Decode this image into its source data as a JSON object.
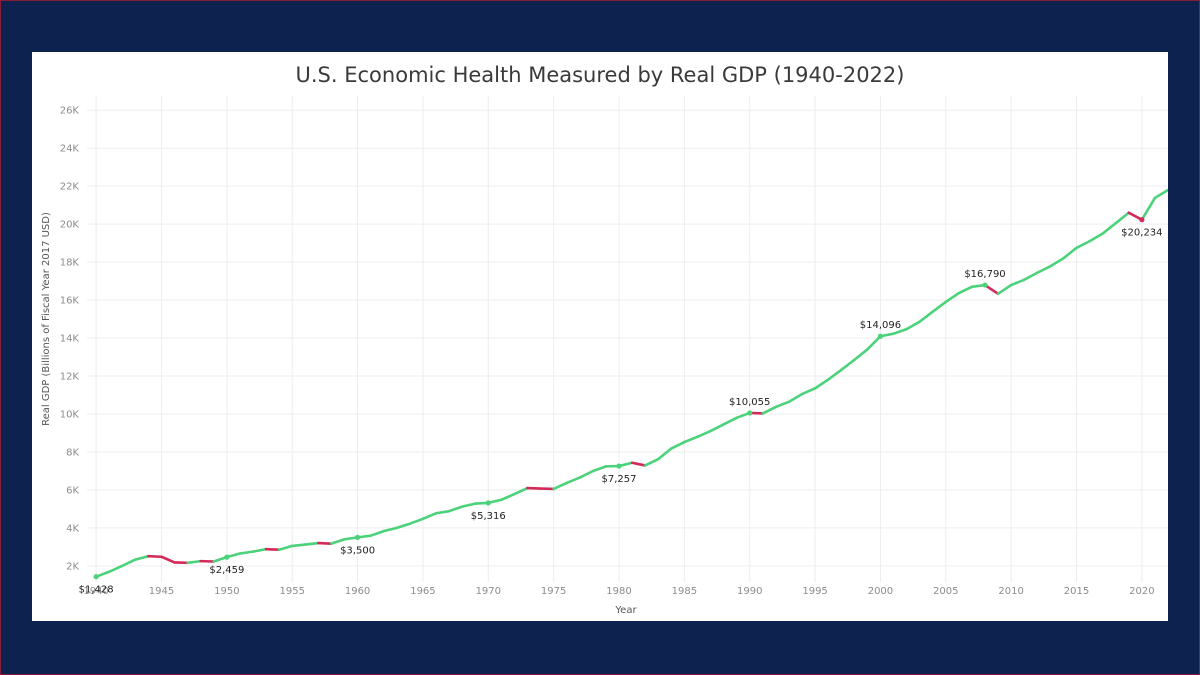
{
  "colors": {
    "background": "#0e2250",
    "growth": "#4cd27a",
    "decline": "#d42a5b",
    "grid": "#ededed"
  },
  "chart_data": {
    "type": "line",
    "title": "U.S. Economic Health Measured by Real GDP (1940-2022)",
    "xlabel": "Year",
    "ylabel": "Real GDP (Billions of Fiscal Year 2017 USD)",
    "xlim": [
      1939.3,
      2022
    ],
    "ylim": [
      1150,
      26750
    ],
    "grid": true,
    "x_ticks": [
      1940,
      1945,
      1950,
      1955,
      1960,
      1965,
      1970,
      1975,
      1980,
      1985,
      1990,
      1995,
      2000,
      2005,
      2010,
      2015,
      2020
    ],
    "y_ticks": [
      2000,
      4000,
      6000,
      8000,
      10000,
      12000,
      14000,
      16000,
      18000,
      20000,
      22000,
      24000,
      26000
    ],
    "y_tick_labels": [
      "2K",
      "4K",
      "6K",
      "8K",
      "10K",
      "12K",
      "14K",
      "16K",
      "18K",
      "20K",
      "22K",
      "24K",
      "26K"
    ],
    "series": [
      {
        "x": [
          1940,
          1941,
          1942,
          1943,
          1944,
          1945,
          1946,
          1947,
          1948,
          1949,
          1950,
          1951,
          1952,
          1953,
          1954,
          1955,
          1956,
          1957,
          1958,
          1959,
          1960,
          1961,
          1962,
          1963,
          1964,
          1965,
          1966,
          1967,
          1968,
          1969,
          1970,
          1971,
          1972,
          1973,
          1974,
          1975,
          1976,
          1977,
          1978,
          1979,
          1980,
          1981,
          1982,
          1983,
          1984,
          1985,
          1986,
          1987,
          1988,
          1989,
          1990,
          1991,
          1992,
          1993,
          1994,
          1995,
          1996,
          1997,
          1998,
          1999,
          2000,
          2001,
          2002,
          2003,
          2004,
          2005,
          2006,
          2007,
          2008,
          2009,
          2010,
          2011,
          2012,
          2013,
          2014,
          2015,
          2016,
          2017,
          2018,
          2019,
          2020,
          2021,
          2022
        ],
        "y": [
          1428,
          1690,
          2000,
          2330,
          2510,
          2480,
          2180,
          2160,
          2250,
          2230,
          2459,
          2650,
          2750,
          2880,
          2850,
          3050,
          3120,
          3200,
          3170,
          3400,
          3500,
          3590,
          3830,
          4000,
          4220,
          4480,
          4770,
          4880,
          5120,
          5280,
          5316,
          5480,
          5780,
          6100,
          6070,
          6050,
          6370,
          6650,
          6990,
          7240,
          7257,
          7430,
          7290,
          7620,
          8180,
          8520,
          8800,
          9100,
          9450,
          9800,
          10055,
          10030,
          10370,
          10640,
          11050,
          11350,
          11810,
          12320,
          12850,
          13400,
          14096,
          14230,
          14470,
          14860,
          15390,
          15900,
          16370,
          16700,
          16790,
          16330,
          16790,
          17070,
          17440,
          17780,
          18200,
          18750,
          19100,
          19500,
          20050,
          20600,
          20234,
          21380,
          21800
        ]
      }
    ],
    "annotations": [
      {
        "year": 1940,
        "text": "$1,428",
        "pos": "below"
      },
      {
        "year": 1950,
        "text": "$2,459",
        "pos": "below"
      },
      {
        "year": 1960,
        "text": "$3,500",
        "pos": "below"
      },
      {
        "year": 1970,
        "text": "$5,316",
        "pos": "below"
      },
      {
        "year": 1980,
        "text": "$7,257",
        "pos": "below"
      },
      {
        "year": 1990,
        "text": "$10,055",
        "pos": "above"
      },
      {
        "year": 2000,
        "text": "$14,096",
        "pos": "above"
      },
      {
        "year": 2008,
        "text": "$16,790",
        "pos": "above"
      },
      {
        "year": 2020,
        "text": "$20,234",
        "pos": "below"
      }
    ]
  }
}
